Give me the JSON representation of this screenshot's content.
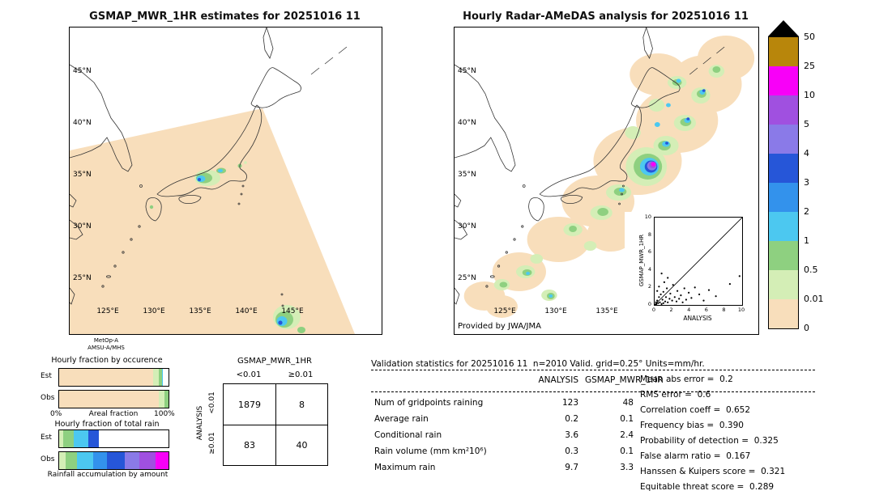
{
  "left_map": {
    "title": "GSMAP_MWR_1HR estimates for 20251016 11",
    "lat_labels": [
      "45°N",
      "40°N",
      "35°N",
      "30°N",
      "25°N"
    ],
    "lon_labels": [
      "125°E",
      "130°E",
      "135°E",
      "140°E",
      "145°E"
    ]
  },
  "right_map": {
    "title": "Hourly Radar-AMeDAS analysis for 20251016 11",
    "lat_labels": [
      "45°N",
      "40°N",
      "35°N",
      "30°N",
      "25°N"
    ],
    "lon_labels": [
      "125°E",
      "130°E",
      "135°E"
    ],
    "credit": "Provided by JWA/JMA"
  },
  "inset": {
    "xlabel": "ANALYSIS",
    "ylabel": "GSMAP_MWR_1HR",
    "tick_values": [
      0,
      2,
      4,
      6,
      8,
      10
    ],
    "axis_min": 0,
    "axis_max": 10
  },
  "colorbar": {
    "labels": [
      "50",
      "25",
      "10",
      "5",
      "4",
      "3",
      "2",
      "1",
      "0.5",
      "0.01",
      "0"
    ],
    "segment_colors_top_to_bottom": [
      "#b8860b",
      "#f800f8",
      "#a050e0",
      "#8a7ae8",
      "#2656d8",
      "#3392ec",
      "#4cc8f0",
      "#8ed080",
      "#d4eeb6",
      "#f8debb"
    ],
    "overflow_marker": "black-triangle",
    "units": "mm/hr"
  },
  "sensor": {
    "line1": "MetOp-A",
    "line2": "AMSU-A/MHS"
  },
  "fractions": {
    "occurrence": {
      "title": "Hourly fraction by occurence",
      "row_labels": [
        "Est",
        "Obs"
      ],
      "x_min_label": "0%",
      "x_max_label": "100%",
      "caption": "Areal fraction",
      "bars": {
        "est": [
          {
            "color": "#f8debb",
            "pct": 86
          },
          {
            "color": "#d4eeb6",
            "pct": 5
          },
          {
            "color": "#8ed080",
            "pct": 3
          },
          {
            "color": "#4cc8f0",
            "pct": 1
          },
          {
            "color": "#ffffff",
            "pct": 5
          }
        ],
        "obs": [
          {
            "color": "#f8debb",
            "pct": 91
          },
          {
            "color": "#d4eeb6",
            "pct": 5
          },
          {
            "color": "#8ed080",
            "pct": 4
          }
        ]
      }
    },
    "total_rain": {
      "title": "Hourly fraction of total rain",
      "row_labels": [
        "Est",
        "Obs"
      ],
      "caption": "Rainfall accumulation by amount",
      "bars": {
        "est": [
          {
            "color": "#d4eeb6",
            "pct": 4
          },
          {
            "color": "#8ed080",
            "pct": 9
          },
          {
            "color": "#4cc8f0",
            "pct": 14
          },
          {
            "color": "#2656d8",
            "pct": 9
          },
          {
            "color": "#ffffff",
            "pct": 64
          }
        ],
        "obs": [
          {
            "color": "#d4eeb6",
            "pct": 6
          },
          {
            "color": "#8ed080",
            "pct": 10
          },
          {
            "color": "#4cc8f0",
            "pct": 15
          },
          {
            "color": "#3392ec",
            "pct": 13
          },
          {
            "color": "#2656d8",
            "pct": 16
          },
          {
            "color": "#8a7ae8",
            "pct": 13
          },
          {
            "color": "#a050e0",
            "pct": 15
          },
          {
            "color": "#f800f8",
            "pct": 12
          }
        ]
      }
    }
  },
  "contingency": {
    "title": "GSMAP_MWR_1HR",
    "row_axis": "ANALYSIS",
    "col_headers": [
      "<0.01",
      "≥0.01"
    ],
    "row_headers": [
      "<0.01",
      "≥0.01"
    ],
    "cells": [
      [
        "1879",
        "8"
      ],
      [
        "83",
        "40"
      ]
    ]
  },
  "stats": {
    "header": "Validation statistics for 20251016 11  n=2010 Valid. grid=0.25° Units=mm/hr.",
    "columns": [
      "ANALYSIS",
      "GSMAP_MWR_1HR"
    ],
    "rows": [
      {
        "label": "Num of gridpoints raining",
        "analysis": "123",
        "gsmap": "48"
      },
      {
        "label": "Average rain",
        "analysis": "0.2",
        "gsmap": "0.1"
      },
      {
        "label": "Conditional rain",
        "analysis": "3.6",
        "gsmap": "2.4"
      },
      {
        "label": "Rain volume (mm km²10⁶)",
        "analysis": "0.3",
        "gsmap": "0.1"
      },
      {
        "label": "Maximum rain",
        "analysis": "9.7",
        "gsmap": "3.3"
      }
    ],
    "side": [
      {
        "label": "Mean abs error =",
        "value": "0.2"
      },
      {
        "label": "RMS error =",
        "value": "0.6"
      },
      {
        "label": "Correlation coeff =",
        "value": "0.652"
      },
      {
        "label": "Frequency bias =",
        "value": "0.390"
      },
      {
        "label": "Probability of detection =",
        "value": "0.325"
      },
      {
        "label": "False alarm ratio =",
        "value": "0.167"
      },
      {
        "label": "Hanssen & Kuipers score =",
        "value": "0.321"
      },
      {
        "label": "Equitable threat score =",
        "value": "0.289"
      }
    ]
  },
  "chart_data": [
    {
      "type": "heatmap",
      "title": "GSMAP_MWR_1HR estimates for 20251016 11",
      "x_ticks": [
        "125°E",
        "130°E",
        "135°E",
        "140°E",
        "145°E"
      ],
      "y_ticks": [
        "45°N",
        "40°N",
        "35°N",
        "30°N",
        "25°N"
      ],
      "units": "mm/hr",
      "colorbar_levels": [
        0,
        0.01,
        0.5,
        1,
        2,
        3,
        4,
        5,
        10,
        25,
        50
      ],
      "note": "MetOp-A AMSU-A/MHS microwave swath over Japan; light rain cores near Kansai and far south of Honshu"
    },
    {
      "type": "heatmap",
      "title": "Hourly Radar-AMeDAS analysis for 20251016 11",
      "x_ticks": [
        "125°E",
        "130°E",
        "135°E"
      ],
      "y_ticks": [
        "45°N",
        "40°N",
        "35°N",
        "30°N",
        "25°N"
      ],
      "units": "mm/hr",
      "colorbar_levels": [
        0,
        0.01,
        0.5,
        1,
        2,
        3,
        4,
        5,
        10,
        25,
        50
      ],
      "annotation": "Provided by JWA/JMA",
      "note": "SW-NE rain band across Japan with heavy core (>10 mm/hr) over Kinki region"
    },
    {
      "type": "scatter",
      "xlabel": "ANALYSIS",
      "ylabel": "GSMAP_MWR_1HR",
      "xlim": [
        0,
        10
      ],
      "ylim": [
        0,
        10
      ],
      "reference_line": "y=x",
      "points": [
        [
          0.1,
          0.05
        ],
        [
          0.15,
          0.3
        ],
        [
          0.2,
          0.1
        ],
        [
          0.3,
          0.5
        ],
        [
          0.3,
          1.6
        ],
        [
          0.4,
          0.2
        ],
        [
          0.5,
          0.9
        ],
        [
          0.5,
          2.1
        ],
        [
          0.6,
          0.3
        ],
        [
          0.7,
          1.2
        ],
        [
          0.8,
          0.1
        ],
        [
          0.8,
          3.6
        ],
        [
          0.9,
          0.6
        ],
        [
          1.0,
          0.2
        ],
        [
          1.0,
          1.5
        ],
        [
          1.1,
          2.6
        ],
        [
          1.2,
          0.4
        ],
        [
          1.3,
          0.9
        ],
        [
          1.4,
          1.9
        ],
        [
          1.5,
          0.3
        ],
        [
          1.5,
          3.1
        ],
        [
          1.7,
          0.7
        ],
        [
          1.8,
          1.3
        ],
        [
          2.0,
          0.5
        ],
        [
          2.1,
          2.3
        ],
        [
          2.3,
          0.9
        ],
        [
          2.5,
          0.4
        ],
        [
          2.6,
          1.6
        ],
        [
          2.8,
          0.7
        ],
        [
          3.0,
          1.1
        ],
        [
          3.2,
          0.3
        ],
        [
          3.4,
          1.9
        ],
        [
          3.6,
          0.6
        ],
        [
          3.9,
          1.4
        ],
        [
          4.2,
          0.8
        ],
        [
          4.6,
          2.0
        ],
        [
          5.1,
          1.2
        ],
        [
          5.6,
          0.5
        ],
        [
          6.2,
          1.7
        ],
        [
          7.0,
          1.0
        ],
        [
          8.6,
          2.4
        ],
        [
          9.7,
          3.3
        ]
      ]
    },
    {
      "type": "table",
      "title": "GSMAP_MWR_1HR vs ANALYSIS contingency (mm/hr)",
      "columns": [
        "<0.01",
        "≥0.01"
      ],
      "row_headers": [
        "<0.01",
        "≥0.01"
      ],
      "rows": [
        [
          "1879",
          "8"
        ],
        [
          "83",
          "40"
        ]
      ]
    },
    {
      "type": "table",
      "title": "Validation statistics for 20251016 11  n=2010 Valid. grid=0.25° Units=mm/hr.",
      "columns": [
        "",
        "ANALYSIS",
        "GSMAP_MWR_1HR"
      ],
      "rows": [
        [
          "Num of gridpoints raining",
          "123",
          "48"
        ],
        [
          "Average rain",
          "0.2",
          "0.1"
        ],
        [
          "Conditional rain",
          "3.6",
          "2.4"
        ],
        [
          "Rain volume (mm km²10⁶)",
          "0.3",
          "0.1"
        ],
        [
          "Maximum rain",
          "9.7",
          "3.3"
        ]
      ],
      "scores": {
        "Mean abs error": 0.2,
        "RMS error": 0.6,
        "Correlation coeff": 0.652,
        "Frequency bias": 0.39,
        "Probability of detection": 0.325,
        "False alarm ratio": 0.167,
        "Hanssen & Kuipers score": 0.321,
        "Equitable threat score": 0.289
      }
    },
    {
      "type": "bar",
      "title": "Hourly fraction by occurence",
      "categories": [
        "Est",
        "Obs"
      ],
      "caption": "Areal fraction",
      "x_range_labels": [
        "0%",
        "100%"
      ]
    },
    {
      "type": "bar",
      "title": "Hourly fraction of total rain",
      "categories": [
        "Est",
        "Obs"
      ],
      "caption": "Rainfall accumulation by amount"
    }
  ]
}
